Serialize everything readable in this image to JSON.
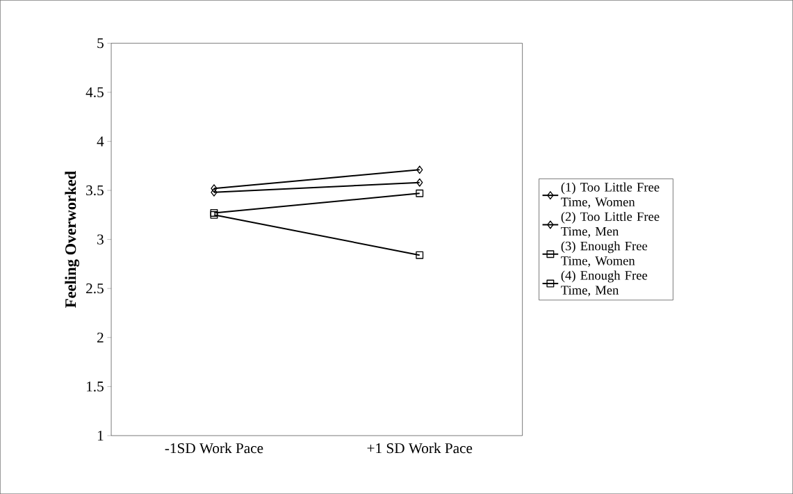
{
  "chart_data": {
    "type": "line",
    "ylabel": "Feeling Overworked",
    "categories": [
      "-1SD Work Pace",
      "+1 SD Work Pace"
    ],
    "ylim": [
      1,
      5
    ],
    "yticks": [
      1,
      1.5,
      2,
      2.5,
      3,
      3.5,
      4,
      4.5,
      5
    ],
    "legend": "right",
    "grid": false,
    "series": [
      {
        "name": "(1) Too Little Free Time, Women",
        "color": "#000000",
        "values": [
          3.52,
          3.71
        ],
        "marker": "diamond"
      },
      {
        "name": "(2) Too Little Free Time, Men",
        "color": "#000000",
        "values": [
          3.48,
          3.58
        ],
        "marker": "diamond"
      },
      {
        "name": "(3) Enough Free Time, Women",
        "color": "#000000",
        "values": [
          3.27,
          3.47
        ],
        "marker": "square"
      },
      {
        "name": "(4) Enough Free Time, Men",
        "color": "#000000",
        "values": [
          3.25,
          2.84
        ],
        "marker": "square"
      }
    ]
  }
}
